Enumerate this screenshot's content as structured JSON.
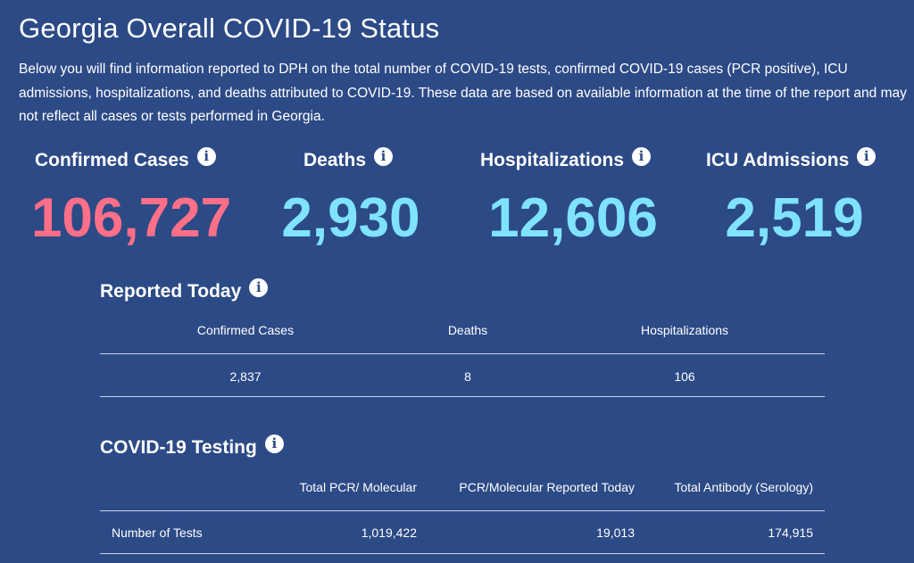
{
  "page": {
    "title": "Georgia Overall COVID-19 Status",
    "intro": "Below you will find information reported to DPH on the total number of COVID-19 tests, confirmed COVID-19 cases (PCR positive), ICU admissions, hospitalizations, and deaths attributed to COVID-19. These data are based on available information at the time of the report and may not reflect all cases or tests performed in Georgia."
  },
  "icons": {
    "info": "i"
  },
  "colors": {
    "background": "#2c4a86",
    "confirmed_value": "#ff7088",
    "other_values": "#7fe3ff"
  },
  "summary": {
    "confirmed": {
      "label": "Confirmed Cases",
      "value": "106,727"
    },
    "deaths": {
      "label": "Deaths",
      "value": "2,930"
    },
    "hospitalizations": {
      "label": "Hospitalizations",
      "value": "12,606"
    },
    "icu": {
      "label": "ICU Admissions",
      "value": "2,519"
    }
  },
  "reported_today": {
    "title": "Reported Today",
    "headers": [
      "Confirmed Cases",
      "Deaths",
      "Hospitalizations"
    ],
    "values": [
      "2,837",
      "8",
      "106"
    ]
  },
  "testing": {
    "title": "COVID-19 Testing",
    "headers": [
      "Total PCR/ Molecular",
      "PCR/Molecular Reported Today",
      "Total Antibody (Serology)"
    ],
    "row_label": "Number of Tests",
    "values": [
      "1,019,422",
      "19,013",
      "174,915"
    ]
  }
}
